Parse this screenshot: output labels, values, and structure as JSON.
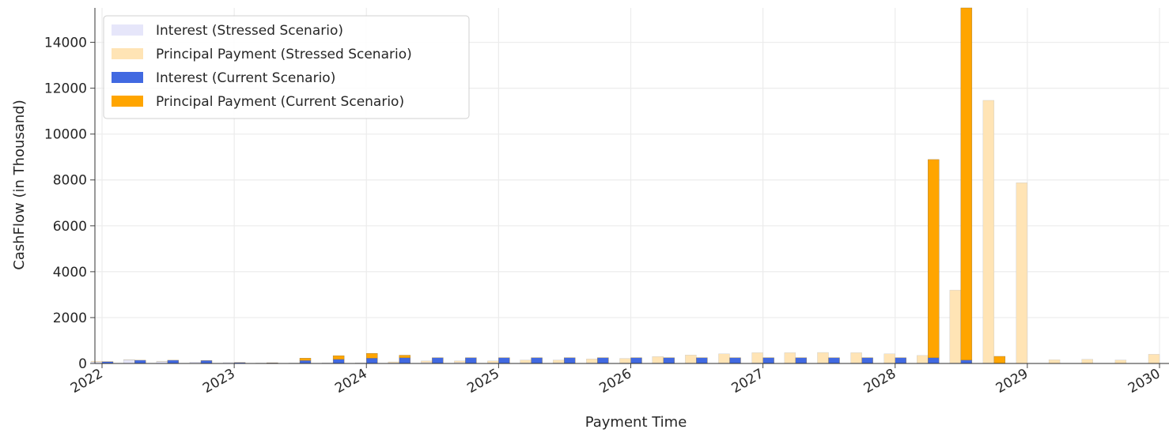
{
  "chart_data": {
    "type": "bar",
    "title": "",
    "xlabel": "Payment Time",
    "ylabel": "CashFlow (in Thousand)",
    "ylim": [
      0,
      15500
    ],
    "xlim": [
      2022.0,
      2030.0
    ],
    "y_ticks": [
      0,
      2000,
      4000,
      6000,
      8000,
      10000,
      12000,
      14000
    ],
    "x_ticks": [
      "2022",
      "2023",
      "2024",
      "2025",
      "2026",
      "2027",
      "2028",
      "2029",
      "2030"
    ],
    "grid": true,
    "legend_position": "top-left",
    "stacked": true,
    "scenarios": [
      {
        "name": "Stressed Scenario",
        "dates": [
          "2022-01-01",
          "2022-04-01",
          "2022-07-01",
          "2022-10-01",
          "2023-01-01",
          "2023-04-01",
          "2023-07-01",
          "2023-10-01",
          "2024-01-01",
          "2024-04-01",
          "2024-07-01",
          "2024-10-01",
          "2025-01-01",
          "2025-04-01",
          "2025-07-01",
          "2025-10-01",
          "2026-01-01",
          "2026-04-01",
          "2026-07-01",
          "2026-10-01",
          "2027-01-01",
          "2027-04-01",
          "2027-07-01",
          "2027-10-01",
          "2028-01-01",
          "2028-04-01",
          "2028-07-01",
          "2028-10-01",
          "2029-01-01",
          "2029-04-01",
          "2029-07-01",
          "2029-10-01",
          "2030-01-01"
        ],
        "series": [
          {
            "name": "Interest (Stressed Scenario)",
            "color": "#e6e6fa",
            "values": [
              60,
              150,
              80,
              60,
              40,
              20,
              20,
              30,
              30,
              30,
              40,
              40,
              30,
              30,
              30,
              30,
              20,
              20,
              20,
              20,
              20,
              20,
              20,
              20,
              20,
              20,
              20,
              20,
              0,
              0,
              0,
              0,
              0
            ]
          },
          {
            "name": "Principal Payment (Stressed Scenario)",
            "color": "#ffe4b5",
            "values": [
              40,
              20,
              20,
              0,
              0,
              0,
              0,
              0,
              0,
              40,
              70,
              70,
              80,
              120,
              120,
              170,
              200,
              280,
              350,
              400,
              450,
              450,
              460,
              450,
              400,
              330,
              3180,
              11450,
              7880,
              160,
              180,
              150,
              400
            ]
          }
        ]
      },
      {
        "name": "Current Scenario",
        "dates": [
          "2022-01-01",
          "2022-04-01",
          "2022-07-01",
          "2022-10-01",
          "2023-01-01",
          "2023-04-01",
          "2023-07-01",
          "2023-10-01",
          "2024-01-01",
          "2024-04-01",
          "2024-07-01",
          "2024-10-01",
          "2025-01-01",
          "2025-04-01",
          "2025-07-01",
          "2025-10-01",
          "2026-01-01",
          "2026-04-01",
          "2026-07-01",
          "2026-10-01",
          "2027-01-01",
          "2027-04-01",
          "2027-07-01",
          "2027-10-01",
          "2028-01-01",
          "2028-04-01",
          "2028-07-01",
          "2028-10-01"
        ],
        "series": [
          {
            "name": "Interest (Current Scenario)",
            "color": "#4169e1",
            "values": [
              80,
              140,
              140,
              130,
              40,
              30,
              130,
              180,
              230,
              250,
              250,
              250,
              250,
              250,
              250,
              250,
              250,
              250,
              250,
              250,
              250,
              250,
              250,
              250,
              250,
              250,
              150,
              0
            ]
          },
          {
            "name": "Principal Payment (Current Scenario)",
            "color": "#ffa500",
            "values": [
              0,
              0,
              0,
              0,
              0,
              0,
              100,
              160,
              210,
              110,
              0,
              0,
              0,
              0,
              0,
              0,
              0,
              0,
              0,
              0,
              0,
              0,
              0,
              0,
              0,
              8640,
              15350,
              310
            ]
          }
        ]
      }
    ]
  }
}
